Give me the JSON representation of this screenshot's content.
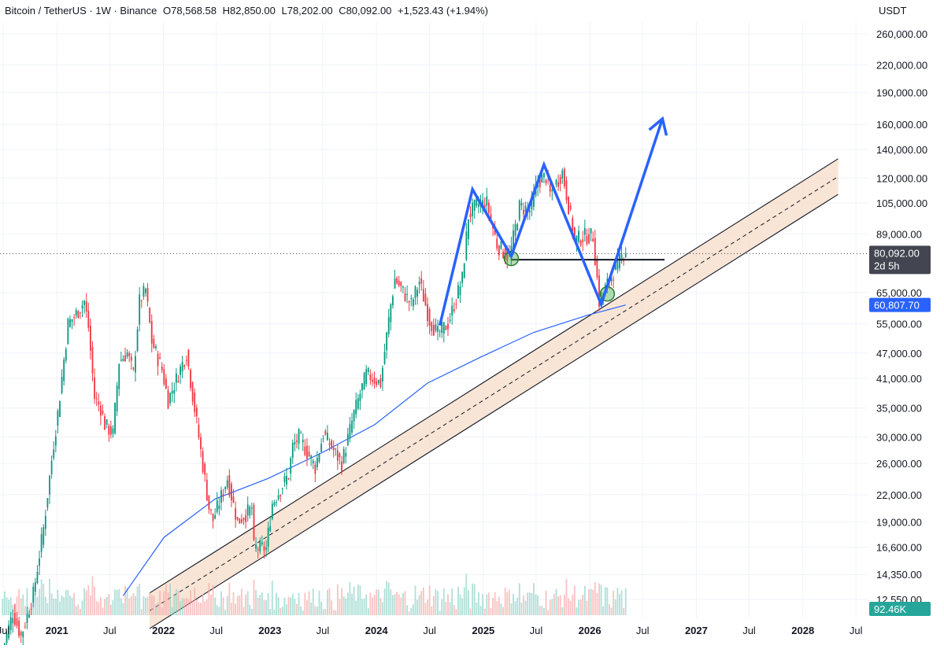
{
  "header": {
    "symbol": "Bitcoin / TetherUS · 1W · Binance",
    "open_label": "O",
    "open": "78,568.58",
    "high_label": "H",
    "high": "82,850.00",
    "low_label": "L",
    "low": "78,202.00",
    "close_label": "C",
    "close": "80,092.00",
    "change": "+1,523.43 (+1.94%)"
  },
  "price_axis": {
    "unit": "USDT",
    "ticks": [
      "260,000.00",
      "220,000.00",
      "190,000.00",
      "160,000.00",
      "140,000.00",
      "120,000.00",
      "105,000.00",
      "89,000.00",
      "65,000.00",
      "55,000.00",
      "47,000.00",
      "41,000.00",
      "35,000.00",
      "30,000.00",
      "26,000.00",
      "22,000.00",
      "19,000.00",
      "16,600.00",
      "14,350.00",
      "12,550.00"
    ],
    "last_price_label": "80,092.00",
    "countdown_label": "2d 5h",
    "ma_label": "60,807.70",
    "volume_label": "92.46K"
  },
  "time_axis": {
    "ticks": [
      "Jul",
      "2021",
      "Jul",
      "2022",
      "Jul",
      "2023",
      "Jul",
      "2024",
      "Jul",
      "2025",
      "Jul",
      "2026",
      "Jul",
      "2027",
      "Jul",
      "2028",
      "Jul"
    ]
  },
  "colors": {
    "up": "#089981",
    "down": "#f23645",
    "ma": "#2962ff",
    "drawing": "#2962ff",
    "channel_fill": "#f5dcc8",
    "last_price_bg": "#434651",
    "ma_bg": "#2962ff",
    "volume_bg": "#26a69a"
  },
  "chart_data": {
    "type": "candlestick",
    "symbol": "Bitcoin / TetherUS",
    "interval": "1W",
    "exchange": "Binance",
    "y_scale": "log",
    "ylim": [
      11800,
      280000
    ],
    "xlim": [
      "2020-06-20",
      "2028-08-10"
    ],
    "last": {
      "open": 78568.58,
      "high": 82850.0,
      "low": 78202.0,
      "close": 80092.0
    },
    "price_path": [
      [
        "2020-06-29",
        9200
      ],
      [
        "2020-08-10",
        11700
      ],
      [
        "2020-09-07",
        10300
      ],
      [
        "2020-10-19",
        12900
      ],
      [
        "2020-11-23",
        18400
      ],
      [
        "2020-12-28",
        29000
      ],
      [
        "2021-01-11",
        34000
      ],
      [
        "2021-02-15",
        55000
      ],
      [
        "2021-03-15",
        58000
      ],
      [
        "2021-04-12",
        62000
      ],
      [
        "2021-04-26",
        54000
      ],
      [
        "2021-05-17",
        37000
      ],
      [
        "2021-06-07",
        35000
      ],
      [
        "2021-06-21",
        32000
      ],
      [
        "2021-07-19",
        30500
      ],
      [
        "2021-08-09",
        45000
      ],
      [
        "2021-09-06",
        47000
      ],
      [
        "2021-09-27",
        42000
      ],
      [
        "2021-10-18",
        62000
      ],
      [
        "2021-11-08",
        66000
      ],
      [
        "2021-11-29",
        50000
      ],
      [
        "2022-01-03",
        43000
      ],
      [
        "2022-01-24",
        36500
      ],
      [
        "2022-03-28",
        47000
      ],
      [
        "2022-05-09",
        30000
      ],
      [
        "2022-06-13",
        20500
      ],
      [
        "2022-06-27",
        19200
      ],
      [
        "2022-08-15",
        24000
      ],
      [
        "2022-09-19",
        19000
      ],
      [
        "2022-11-07",
        20500
      ],
      [
        "2022-11-14",
        16600
      ],
      [
        "2022-12-26",
        16500
      ],
      [
        "2023-01-16",
        21000
      ],
      [
        "2023-03-13",
        24500
      ],
      [
        "2023-03-27",
        28500
      ],
      [
        "2023-04-17",
        30000
      ],
      [
        "2023-06-12",
        25500
      ],
      [
        "2023-07-10",
        30500
      ],
      [
        "2023-09-11",
        26000
      ],
      [
        "2023-10-23",
        34000
      ],
      [
        "2023-12-04",
        42000
      ],
      [
        "2024-01-22",
        40000
      ],
      [
        "2024-02-26",
        61000
      ],
      [
        "2024-03-11",
        70000
      ],
      [
        "2024-05-06",
        61000
      ],
      [
        "2024-06-03",
        69000
      ],
      [
        "2024-07-08",
        56000
      ],
      [
        "2024-08-05",
        52000
      ],
      [
        "2024-09-09",
        55000
      ],
      [
        "2024-10-28",
        70000
      ],
      [
        "2024-11-18",
        98000
      ],
      [
        "2024-12-16",
        104000
      ],
      [
        "2025-01-20",
        105000
      ],
      [
        "2025-02-24",
        84000
      ],
      [
        "2025-04-07",
        78000
      ],
      [
        "2025-05-12",
        103000
      ],
      [
        "2025-06-16",
        101000
      ],
      [
        "2025-07-14",
        118000
      ],
      [
        "2025-08-11",
        121000
      ],
      [
        "2025-08-25",
        110000
      ],
      [
        "2025-10-06",
        124000
      ],
      [
        "2025-10-20",
        110000
      ],
      [
        "2025-11-17",
        86000
      ],
      [
        "2025-12-22",
        88000
      ],
      [
        "2026-01-19",
        88000
      ],
      [
        "2026-02-02",
        70000
      ],
      [
        "2026-02-09",
        62000
      ],
      [
        "2026-03-09",
        68000
      ],
      [
        "2026-04-06",
        74000
      ],
      [
        "2026-05-04",
        80092
      ]
    ],
    "moving_average": [
      [
        "2021-08-16",
        12800
      ],
      [
        "2022-01-03",
        17500
      ],
      [
        "2022-06-27",
        21500
      ],
      [
        "2022-12-26",
        24000
      ],
      [
        "2023-06-26",
        27500
      ],
      [
        "2023-12-25",
        32000
      ],
      [
        "2024-06-24",
        40000
      ],
      [
        "2024-12-23",
        46000
      ],
      [
        "2025-06-23",
        52500
      ],
      [
        "2025-12-22",
        57500
      ],
      [
        "2026-05-04",
        60807.7
      ]
    ],
    "horizontal_line": {
      "price": 77500,
      "from": "2025-04-07",
      "to": "2026-09-14"
    },
    "pattern_path": [
      [
        "2024-08-05",
        54500
      ],
      [
        "2024-11-25",
        113000
      ],
      [
        "2025-04-07",
        79000
      ],
      [
        "2025-07-28",
        129000
      ],
      [
        "2026-02-09",
        61000
      ],
      [
        "2026-09-07",
        165000
      ]
    ],
    "channel": {
      "start": [
        "2022-11-07",
        16800
      ],
      "end": [
        "2028-05-01",
        121000
      ],
      "band_ratio": 1.1
    },
    "markers": [
      {
        "date": "2025-04-07",
        "price": 78000
      },
      {
        "date": "2026-03-02",
        "price": 64500
      }
    ],
    "volume": {
      "last_label": "92.46K"
    }
  }
}
